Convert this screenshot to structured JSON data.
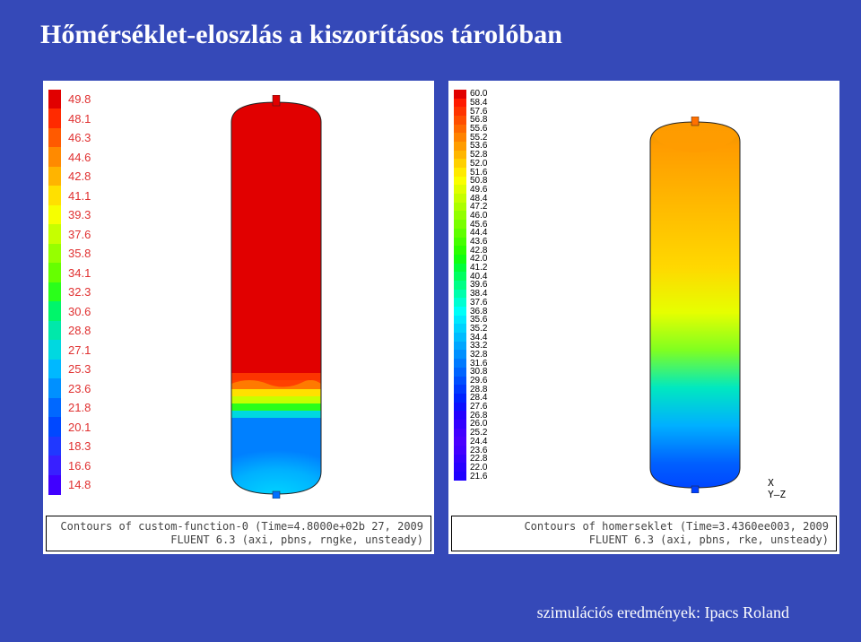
{
  "title": "Hőmérséklet-eloszlás a kiszorításos tárolóban",
  "credit": "szimulációs eredmények: Ipacs Roland",
  "left_panel": {
    "legend_values": [
      "49.8",
      "48.1",
      "46.3",
      "44.6",
      "42.8",
      "41.1",
      "39.3",
      "37.6",
      "35.8",
      "34.1",
      "32.3",
      "30.6",
      "28.8",
      "27.1",
      "25.3",
      "23.6",
      "21.8",
      "20.1",
      "18.3",
      "16.6",
      "14.8"
    ],
    "legend_colors": [
      "#e10000",
      "#ff2a00",
      "#ff5a00",
      "#ff8a00",
      "#ffb400",
      "#ffe000",
      "#f6ff00",
      "#c6ff00",
      "#96ff00",
      "#66ff00",
      "#2aff1a",
      "#00f56a",
      "#00e8aa",
      "#00d8e0",
      "#00b8ff",
      "#0090ff",
      "#0068ff",
      "#0048ff",
      "#2038ff",
      "#3820ff",
      "#4000ff"
    ],
    "caption_line1": "Contours of custom-function-0 (Time=4.8000e+02b 27, 2009",
    "caption_line2": "FLUENT 6.3 (axi, pbns, rngke, unsteady)",
    "tank": {
      "top_color": "#e10000",
      "mid_colors": [
        "#ff7a00",
        "#ffe000",
        "#c6ff00",
        "#2aff1a",
        "#00d8e0",
        "#0090ff"
      ],
      "bottom_color": "#00b8ff",
      "interface_y": 0.72,
      "outline": "#222"
    }
  },
  "right_panel": {
    "legend_values": [
      "60.0",
      "58.4",
      "57.6",
      "56.8",
      "55.6",
      "55.2",
      "53.6",
      "52.8",
      "52.0",
      "51.6",
      "50.8",
      "49.6",
      "48.4",
      "47.2",
      "46.0",
      "45.6",
      "44.4",
      "43.6",
      "42.8",
      "42.0",
      "41.2",
      "40.4",
      "39.6",
      "38.4",
      "37.6",
      "36.8",
      "35.6",
      "35.2",
      "34.4",
      "33.2",
      "32.8",
      "31.6",
      "30.8",
      "29.6",
      "28.8",
      "28.4",
      "27.6",
      "26.8",
      "26.0",
      "25.2",
      "24.4",
      "23.6",
      "22.8",
      "22.0",
      "21.6"
    ],
    "legend_colors": [
      "#e10000",
      "#ff1a00",
      "#ff3400",
      "#ff4e00",
      "#ff6800",
      "#ff8200",
      "#ff9c00",
      "#ffb600",
      "#ffd000",
      "#ffea00",
      "#faff00",
      "#e0ff00",
      "#c6ff00",
      "#acff00",
      "#92ff00",
      "#78ff00",
      "#5eff00",
      "#44ff00",
      "#2aff00",
      "#10ff10",
      "#00ff3a",
      "#00ff60",
      "#00ff86",
      "#00ffac",
      "#00ffd2",
      "#00fff8",
      "#00e8ff",
      "#00d2ff",
      "#00bcff",
      "#00a6ff",
      "#0090ff",
      "#007aff",
      "#0064ff",
      "#004eff",
      "#0038ff",
      "#0022ff",
      "#0c10ff",
      "#2200ff",
      "#3400ff",
      "#4200ff",
      "#4a00ff",
      "#4200ff",
      "#3400ff",
      "#2800ff",
      "#2000ff"
    ],
    "caption_line1": "Contours of homerseklet (Time=3.4360ee003, 2009",
    "caption_line2": "FLUENT 6.3 (axi, pbns, rke, unsteady)",
    "axes": {
      "x": "X",
      "y": "Y",
      "z": "Z"
    },
    "tank": {
      "grad_stops": [
        {
          "o": 0,
          "c": "#e19000"
        },
        {
          "o": 0.08,
          "c": "#ff9c00"
        },
        {
          "o": 0.4,
          "c": "#ffd800"
        },
        {
          "o": 0.52,
          "c": "#e6ff00"
        },
        {
          "o": 0.62,
          "c": "#80ff20"
        },
        {
          "o": 0.72,
          "c": "#00e8c0"
        },
        {
          "o": 0.82,
          "c": "#00b0ff"
        },
        {
          "o": 0.92,
          "c": "#0060ff"
        },
        {
          "o": 1.0,
          "c": "#0040ff"
        }
      ],
      "outline": "#222"
    }
  }
}
